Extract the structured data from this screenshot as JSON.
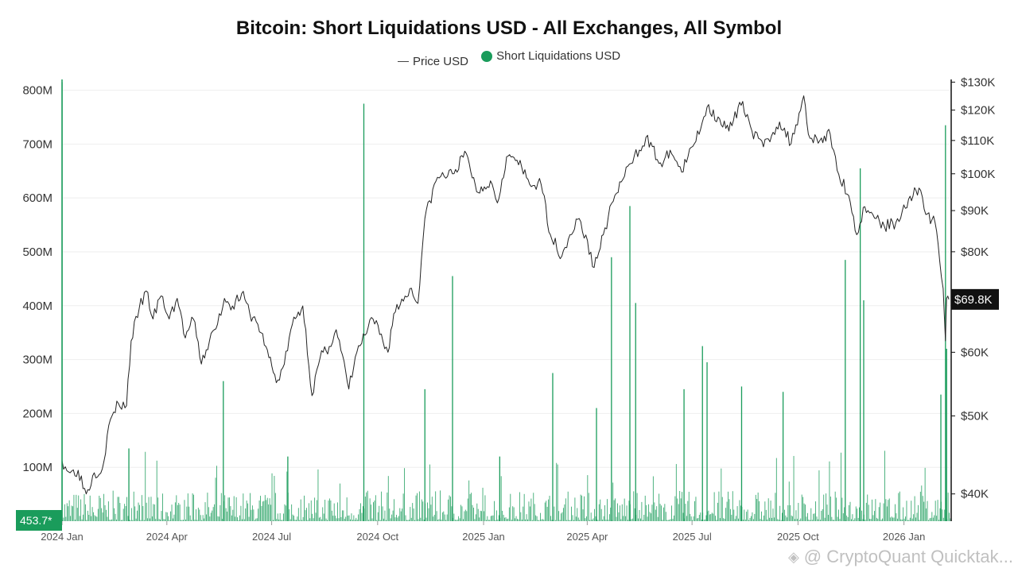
{
  "chart_data": {
    "type": "bar+line",
    "title": "Bitcoin: Short Liquidations USD - All Exchanges, All Symbol",
    "legend_placement": "top-center",
    "grid": true,
    "series": [
      {
        "name": "Price USD",
        "type": "line",
        "axis": "right",
        "color": "#222222",
        "points": [
          [
            "2024-01-01",
            44000
          ],
          [
            "2024-01-08",
            42500
          ],
          [
            "2024-01-15",
            42800
          ],
          [
            "2024-01-22",
            40000
          ],
          [
            "2024-01-29",
            42500
          ],
          [
            "2024-02-05",
            43000
          ],
          [
            "2024-02-12",
            49500
          ],
          [
            "2024-02-19",
            51800
          ],
          [
            "2024-02-26",
            51500
          ],
          [
            "2024-03-01",
            62000
          ],
          [
            "2024-03-08",
            68000
          ],
          [
            "2024-03-14",
            71500
          ],
          [
            "2024-03-20",
            66000
          ],
          [
            "2024-03-27",
            70500
          ],
          [
            "2024-04-03",
            66000
          ],
          [
            "2024-04-10",
            70000
          ],
          [
            "2024-04-17",
            62500
          ],
          [
            "2024-04-24",
            66000
          ],
          [
            "2024-05-01",
            58000
          ],
          [
            "2024-05-08",
            62000
          ],
          [
            "2024-05-15",
            65000
          ],
          [
            "2024-05-21",
            70000
          ],
          [
            "2024-05-28",
            68500
          ],
          [
            "2024-06-05",
            71000
          ],
          [
            "2024-06-12",
            67000
          ],
          [
            "2024-06-19",
            65000
          ],
          [
            "2024-06-26",
            61000
          ],
          [
            "2024-07-05",
            55000
          ],
          [
            "2024-07-12",
            58000
          ],
          [
            "2024-07-19",
            65000
          ],
          [
            "2024-07-28",
            68500
          ],
          [
            "2024-08-05",
            53000
          ],
          [
            "2024-08-12",
            59000
          ],
          [
            "2024-08-20",
            61000
          ],
          [
            "2024-08-26",
            64000
          ],
          [
            "2024-09-06",
            54000
          ],
          [
            "2024-09-13",
            60000
          ],
          [
            "2024-09-20",
            63000
          ],
          [
            "2024-09-27",
            66000
          ],
          [
            "2024-10-10",
            60000
          ],
          [
            "2024-10-15",
            67000
          ],
          [
            "2024-10-29",
            72000
          ],
          [
            "2024-11-05",
            69000
          ],
          [
            "2024-11-11",
            88000
          ],
          [
            "2024-11-22",
            99000
          ],
          [
            "2024-12-05",
            100000
          ],
          [
            "2024-12-17",
            106000
          ],
          [
            "2024-12-26",
            95000
          ],
          [
            "2025-01-07",
            98000
          ],
          [
            "2025-01-13",
            92000
          ],
          [
            "2025-01-21",
            105000
          ],
          [
            "2025-01-30",
            104000
          ],
          [
            "2025-02-10",
            97000
          ],
          [
            "2025-02-20",
            97000
          ],
          [
            "2025-02-28",
            84000
          ],
          [
            "2025-03-10",
            79000
          ],
          [
            "2025-03-17",
            84000
          ],
          [
            "2025-03-25",
            88000
          ],
          [
            "2025-04-07",
            76500
          ],
          [
            "2025-04-15",
            84000
          ],
          [
            "2025-04-25",
            94000
          ],
          [
            "2025-05-09",
            103000
          ],
          [
            "2025-05-22",
            111000
          ],
          [
            "2025-06-05",
            102000
          ],
          [
            "2025-06-12",
            107000
          ],
          [
            "2025-06-22",
            100500
          ],
          [
            "2025-07-03",
            109000
          ],
          [
            "2025-07-14",
            121000
          ],
          [
            "2025-07-25",
            117000
          ],
          [
            "2025-08-02",
            113000
          ],
          [
            "2025-08-14",
            123000
          ],
          [
            "2025-08-22",
            113000
          ],
          [
            "2025-09-01",
            108000
          ],
          [
            "2025-09-15",
            116000
          ],
          [
            "2025-09-25",
            109000
          ],
          [
            "2025-10-06",
            125000
          ],
          [
            "2025-10-10",
            112000
          ],
          [
            "2025-10-20",
            110000
          ],
          [
            "2025-10-29",
            112000
          ],
          [
            "2025-11-04",
            101000
          ],
          [
            "2025-11-14",
            94000
          ],
          [
            "2025-11-21",
            84000
          ],
          [
            "2025-11-28",
            91000
          ],
          [
            "2025-12-05",
            89000
          ],
          [
            "2025-12-15",
            86000
          ],
          [
            "2025-12-25",
            87000
          ],
          [
            "2026-01-05",
            93000
          ],
          [
            "2026-01-14",
            96000
          ],
          [
            "2026-01-20",
            89000
          ],
          [
            "2026-01-28",
            87000
          ],
          [
            "2026-02-01",
            78000
          ],
          [
            "2026-02-04",
            72000
          ],
          [
            "2026-02-06",
            62000
          ],
          [
            "2026-02-07",
            70000
          ],
          [
            "2026-02-09",
            69800
          ]
        ]
      },
      {
        "name": "Short Liquidations USD",
        "type": "bar",
        "axis": "left",
        "color": "#1a9c5b",
        "peaks": [
          [
            "2024-01-01",
            815000000
          ],
          [
            "2024-02-28",
            135000000
          ],
          [
            "2024-05-20",
            260000000
          ],
          [
            "2024-07-15",
            120000000
          ],
          [
            "2024-09-19",
            775000000
          ],
          [
            "2024-11-11",
            245000000
          ],
          [
            "2024-12-05",
            455000000
          ],
          [
            "2025-01-15",
            120000000
          ],
          [
            "2025-03-02",
            275000000
          ],
          [
            "2025-04-09",
            210000000
          ],
          [
            "2025-04-22",
            490000000
          ],
          [
            "2025-05-08",
            585000000
          ],
          [
            "2025-05-13",
            405000000
          ],
          [
            "2025-06-24",
            245000000
          ],
          [
            "2025-07-10",
            325000000
          ],
          [
            "2025-07-14",
            295000000
          ],
          [
            "2025-08-13",
            250000000
          ],
          [
            "2025-09-18",
            240000000
          ],
          [
            "2025-11-11",
            485000000
          ],
          [
            "2025-11-24",
            655000000
          ],
          [
            "2025-11-27",
            410000000
          ],
          [
            "2026-02-02",
            235000000
          ],
          [
            "2026-02-06",
            735000000
          ],
          [
            "2026-02-07",
            320000000
          ]
        ]
      }
    ],
    "y_left": {
      "ticks": [
        "100M",
        "200M",
        "300M",
        "400M",
        "500M",
        "600M",
        "700M",
        "800M"
      ],
      "range": [
        0,
        820000000
      ]
    },
    "y_right": {
      "ticks": [
        "$40K",
        "$50K",
        "$60K",
        "$70K",
        "$80K",
        "$90K",
        "$100K",
        "$110K",
        "$120K",
        "$130K"
      ],
      "range": [
        37000,
        131000
      ],
      "scale": "log"
    },
    "x_ticks": [
      "2024 Jan",
      "2024 Apr",
      "2024 Jul",
      "2024 Oct",
      "2025 Jan",
      "2025 Apr",
      "2025 Jul",
      "2025 Oct",
      "2026 Jan"
    ],
    "current_price_label": "$69.8K",
    "left_value_badge": "453.7*"
  },
  "watermark": "@ CryptoQuant Quicktak..."
}
